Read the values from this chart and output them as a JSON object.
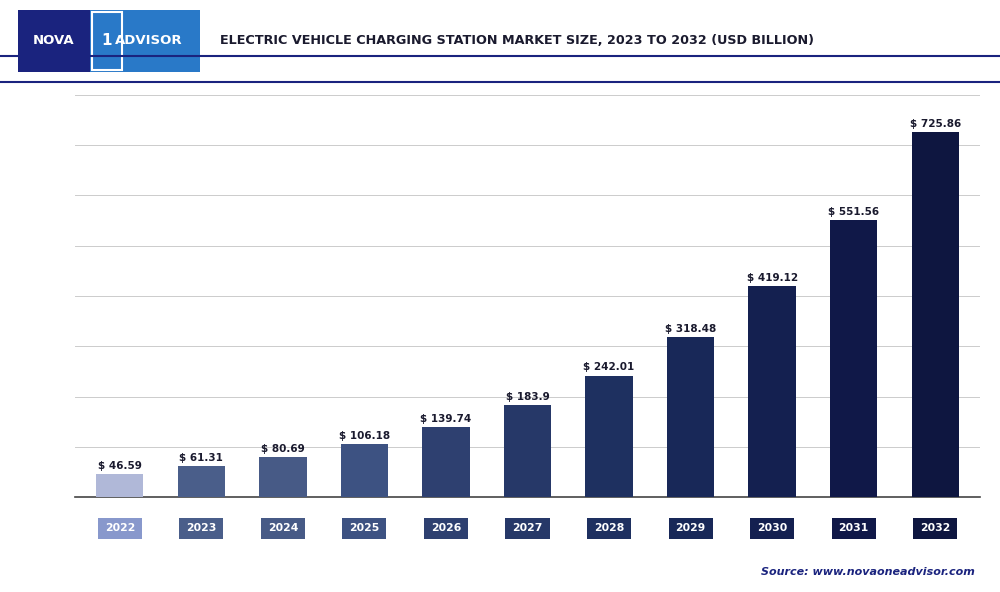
{
  "years": [
    "2022",
    "2023",
    "2024",
    "2025",
    "2026",
    "2027",
    "2028",
    "2029",
    "2030",
    "2031",
    "2032"
  ],
  "values": [
    46.59,
    61.31,
    80.69,
    106.18,
    139.74,
    183.9,
    242.01,
    318.48,
    419.12,
    551.56,
    725.86
  ],
  "labels": [
    "$ 46.59",
    "$ 61.31",
    "$ 80.69",
    "$ 106.18",
    "$ 139.74",
    "$ 183.9",
    "$ 242.01",
    "$ 318.48",
    "$ 419.12",
    "$ 551.56",
    "$ 725.86"
  ],
  "bar_colors": [
    "#b0b8d8",
    "#4a5e8a",
    "#475a86",
    "#3d5282",
    "#2e4070",
    "#263868",
    "#1e3060",
    "#182858",
    "#142050",
    "#101848",
    "#0e1640"
  ],
  "tick_label_colors": [
    "#8898cc",
    "#4a5e8a",
    "#475a86",
    "#3d5282",
    "#2e4070",
    "#263868",
    "#1e3060",
    "#182858",
    "#142050",
    "#101848",
    "#0e1640"
  ],
  "ylim": [
    0,
    800
  ],
  "yticks": [
    0,
    100,
    200,
    300,
    400,
    500,
    600,
    700,
    800
  ],
  "title": "ELECTRIC VEHICLE CHARGING STATION MARKET SIZE, 2023 TO 2032 (USD BILLION)",
  "source_text": "Source: www.novaoneadvisor.com",
  "background_color": "#ffffff",
  "plot_bg_color": "#ffffff",
  "grid_color": "#cccccc",
  "border_color": "#1a237e",
  "logo_left_color": "#1a237e",
  "logo_right_color": "#2979c8",
  "logo_box_color": "#ffffff"
}
